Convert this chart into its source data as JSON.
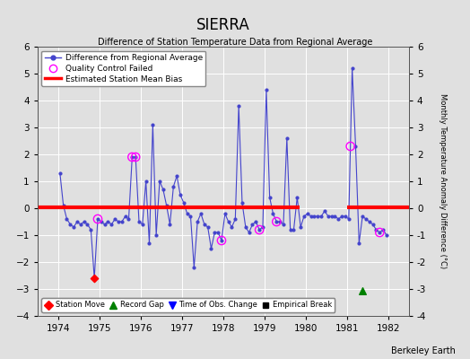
{
  "title": "SIERRA",
  "subtitle": "Difference of Station Temperature Data from Regional Average",
  "ylabel_right": "Monthly Temperature Anomaly Difference (°C)",
  "watermark": "Berkeley Earth",
  "xlim": [
    1973.5,
    1982.5
  ],
  "ylim": [
    -4,
    6
  ],
  "yticks": [
    -4,
    -3,
    -2,
    -1,
    0,
    1,
    2,
    3,
    4,
    5,
    6
  ],
  "xticks": [
    1974,
    1975,
    1976,
    1977,
    1978,
    1979,
    1980,
    1981,
    1982
  ],
  "bias": 0.05,
  "line_color": "#4444cc",
  "bias_color": "red",
  "background_color": "#e0e0e0",
  "grid_color": "white",
  "data_x": [
    1974.042,
    1974.125,
    1974.208,
    1974.292,
    1974.375,
    1974.458,
    1974.542,
    1974.625,
    1974.708,
    1974.792,
    1974.875,
    1974.958,
    1975.042,
    1975.125,
    1975.208,
    1975.292,
    1975.375,
    1975.458,
    1975.542,
    1975.625,
    1975.708,
    1975.792,
    1975.875,
    1975.958,
    1976.042,
    1976.125,
    1976.208,
    1976.292,
    1976.375,
    1976.458,
    1976.542,
    1976.625,
    1976.708,
    1976.792,
    1976.875,
    1976.958,
    1977.042,
    1977.125,
    1977.208,
    1977.292,
    1977.375,
    1977.458,
    1977.542,
    1977.625,
    1977.708,
    1977.792,
    1977.875,
    1977.958,
    1978.042,
    1978.125,
    1978.208,
    1978.292,
    1978.375,
    1978.458,
    1978.542,
    1978.625,
    1978.708,
    1978.792,
    1978.875,
    1978.958,
    1979.042,
    1979.125,
    1979.208,
    1979.292,
    1979.375,
    1979.458,
    1979.542,
    1979.625,
    1979.708,
    1979.792,
    1979.875,
    1979.958,
    1980.042,
    1980.125,
    1980.208,
    1980.292,
    1980.375,
    1980.458,
    1980.542,
    1980.625,
    1980.708,
    1980.792,
    1980.875,
    1980.958,
    1981.042,
    1981.125,
    1981.208,
    1981.292,
    1981.375,
    1981.458,
    1981.542,
    1981.625,
    1981.708,
    1981.792,
    1981.875,
    1981.958
  ],
  "data_y": [
    1.3,
    0.1,
    -0.4,
    -0.6,
    -0.7,
    -0.5,
    -0.6,
    -0.5,
    -0.6,
    -0.8,
    -2.6,
    -0.4,
    -0.5,
    -0.6,
    -0.5,
    -0.6,
    -0.4,
    -0.5,
    -0.5,
    -0.3,
    -0.4,
    1.9,
    1.9,
    -0.5,
    -0.6,
    1.0,
    -1.3,
    3.1,
    -1.0,
    1.0,
    0.7,
    0.1,
    -0.6,
    0.8,
    1.2,
    0.5,
    0.2,
    -0.2,
    -0.3,
    -2.2,
    -0.5,
    -0.2,
    -0.6,
    -0.7,
    -1.5,
    -0.9,
    -0.9,
    -1.2,
    -0.2,
    -0.5,
    -0.7,
    -0.4,
    3.8,
    0.2,
    -0.7,
    -0.9,
    -0.6,
    -0.5,
    -0.8,
    -0.7,
    4.4,
    0.4,
    -0.2,
    -0.5,
    -0.5,
    -0.6,
    2.6,
    -0.8,
    -0.8,
    0.4,
    -0.7,
    -0.3,
    -0.2,
    -0.3,
    -0.3,
    -0.3,
    -0.3,
    -0.1,
    -0.3,
    -0.3,
    -0.3,
    -0.4,
    -0.3,
    -0.3,
    -0.4,
    5.2,
    2.3,
    -1.3,
    -0.3,
    -0.4,
    -0.5,
    -0.6,
    -0.8,
    -0.9,
    -0.8,
    -1.0
  ],
  "qc_failed_x": [
    1974.958,
    1975.792,
    1975.875,
    1977.958,
    1978.875,
    1979.292,
    1981.083,
    1981.792
  ],
  "qc_failed_y": [
    -0.4,
    1.9,
    1.9,
    -1.2,
    -0.8,
    -0.5,
    2.3,
    -0.9
  ],
  "station_move_x": [
    1974.875
  ],
  "station_move_y": [
    -2.6
  ],
  "record_gap_x": [
    1981.375
  ],
  "record_gap_y": [
    -3.05
  ],
  "tobs_change_x": [],
  "tobs_change_y": [],
  "empirical_break_x": [],
  "empirical_break_y": []
}
